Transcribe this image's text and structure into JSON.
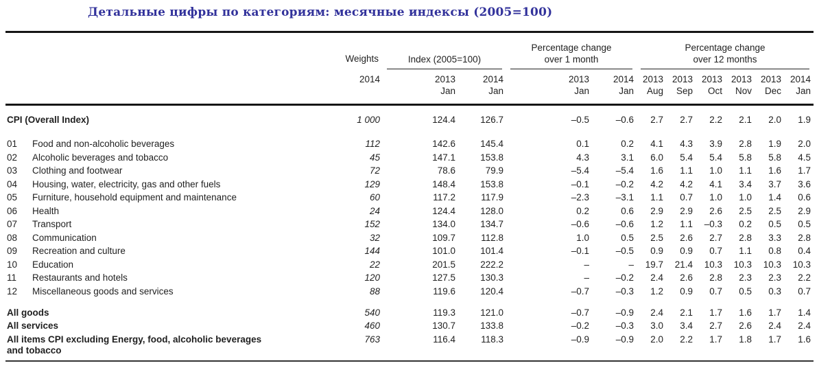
{
  "title": "Детальные цифры по категориям: месячные индексы (2005=100)",
  "colors": {
    "title": "#32329b",
    "text": "#1f1f1f",
    "rule": "#151515"
  },
  "table": {
    "header": {
      "weights_label": "Weights",
      "weights_year": "2014",
      "index_group_label": "Index (2005=100)",
      "pct1_line1": "Percentage change",
      "pct1_line2": "over 1 month",
      "pct12_line1": "Percentage change",
      "pct12_line2": "over 12 months",
      "subcols": [
        {
          "year": "2013",
          "month": "Jan"
        },
        {
          "year": "2014",
          "month": "Jan"
        },
        {
          "year": "2013",
          "month": "Jan"
        },
        {
          "year": "2014",
          "month": "Jan"
        },
        {
          "year": "2013",
          "month": "Aug"
        },
        {
          "year": "2013",
          "month": "Sep"
        },
        {
          "year": "2013",
          "month": "Oct"
        },
        {
          "year": "2013",
          "month": "Nov"
        },
        {
          "year": "2013",
          "month": "Dec"
        },
        {
          "year": "2014",
          "month": "Jan"
        }
      ]
    },
    "rows": [
      {
        "code": "",
        "label": "CPI (Overall Index)",
        "group": "overall",
        "weight": "1 000",
        "values": [
          "124.4",
          "126.7",
          "–0.5",
          "–0.6",
          "2.7",
          "2.7",
          "2.2",
          "2.1",
          "2.0",
          "1.9"
        ]
      },
      {
        "code": "01",
        "label": "Food and non-alcoholic beverages",
        "group": "category",
        "weight": "112",
        "values": [
          "142.6",
          "145.4",
          "0.1",
          "0.2",
          "4.1",
          "4.3",
          "3.9",
          "2.8",
          "1.9",
          "2.0"
        ]
      },
      {
        "code": "02",
        "label": "Alcoholic beverages and tobacco",
        "group": "category",
        "weight": "45",
        "values": [
          "147.1",
          "153.8",
          "4.3",
          "3.1",
          "6.0",
          "5.4",
          "5.4",
          "5.8",
          "5.8",
          "4.5"
        ]
      },
      {
        "code": "03",
        "label": "Clothing and footwear",
        "group": "category",
        "weight": "72",
        "values": [
          "78.6",
          "79.9",
          "–5.4",
          "–5.4",
          "1.6",
          "1.1",
          "1.0",
          "1.1",
          "1.6",
          "1.7"
        ]
      },
      {
        "code": "04",
        "label": "Housing, water, electricity, gas and other fuels",
        "group": "category",
        "weight": "129",
        "values": [
          "148.4",
          "153.8",
          "–0.1",
          "–0.2",
          "4.2",
          "4.2",
          "4.1",
          "3.4",
          "3.7",
          "3.6"
        ]
      },
      {
        "code": "05",
        "label": "Furniture, household equipment and maintenance",
        "group": "category",
        "weight": "60",
        "values": [
          "117.2",
          "117.9",
          "–2.3",
          "–3.1",
          "1.1",
          "0.7",
          "1.0",
          "1.0",
          "1.4",
          "0.6"
        ]
      },
      {
        "code": "06",
        "label": "Health",
        "group": "category",
        "weight": "24",
        "values": [
          "124.4",
          "128.0",
          "0.2",
          "0.6",
          "2.9",
          "2.9",
          "2.6",
          "2.5",
          "2.5",
          "2.9"
        ]
      },
      {
        "code": "07",
        "label": "Transport",
        "group": "category",
        "weight": "152",
        "values": [
          "134.0",
          "134.7",
          "–0.6",
          "–0.6",
          "1.2",
          "1.1",
          "–0.3",
          "0.2",
          "0.5",
          "0.5"
        ]
      },
      {
        "code": "08",
        "label": "Communication",
        "group": "category",
        "weight": "32",
        "values": [
          "109.7",
          "112.8",
          "1.0",
          "0.5",
          "2.5",
          "2.6",
          "2.7",
          "2.8",
          "3.3",
          "2.8"
        ]
      },
      {
        "code": "09",
        "label": "Recreation and culture",
        "group": "category",
        "weight": "144",
        "values": [
          "101.0",
          "101.4",
          "–0.1",
          "–0.5",
          "0.9",
          "0.9",
          "0.7",
          "1.1",
          "0.8",
          "0.4"
        ]
      },
      {
        "code": "10",
        "label": "Education",
        "group": "category",
        "weight": "22",
        "values": [
          "201.5",
          "222.2",
          "–",
          "–",
          "19.7",
          "21.4",
          "10.3",
          "10.3",
          "10.3",
          "10.3"
        ]
      },
      {
        "code": "11",
        "label": "Restaurants and hotels",
        "group": "category",
        "weight": "120",
        "values": [
          "127.5",
          "130.3",
          "–",
          "–0.2",
          "2.4",
          "2.6",
          "2.8",
          "2.3",
          "2.3",
          "2.2"
        ]
      },
      {
        "code": "12",
        "label": "Miscellaneous goods and services",
        "group": "category",
        "weight": "88",
        "values": [
          "119.6",
          "120.4",
          "–0.7",
          "–0.3",
          "1.2",
          "0.9",
          "0.7",
          "0.5",
          "0.3",
          "0.7"
        ]
      },
      {
        "code": "",
        "label": "All goods",
        "group": "summary",
        "weight": "540",
        "values": [
          "119.3",
          "121.0",
          "–0.7",
          "–0.9",
          "2.4",
          "2.1",
          "1.7",
          "1.6",
          "1.7",
          "1.4"
        ]
      },
      {
        "code": "",
        "label": "All services",
        "group": "summary",
        "weight": "460",
        "values": [
          "130.7",
          "133.8",
          "–0.2",
          "–0.3",
          "3.0",
          "3.4",
          "2.7",
          "2.6",
          "2.4",
          "2.4"
        ]
      },
      {
        "code": "",
        "label": "All items CPI excluding Energy, food, alcoholic beverages\nand tobacco",
        "group": "summary",
        "weight": "763",
        "values": [
          "116.4",
          "118.3",
          "–0.9",
          "–0.9",
          "2.0",
          "2.2",
          "1.7",
          "1.8",
          "1.7",
          "1.6"
        ]
      }
    ]
  }
}
